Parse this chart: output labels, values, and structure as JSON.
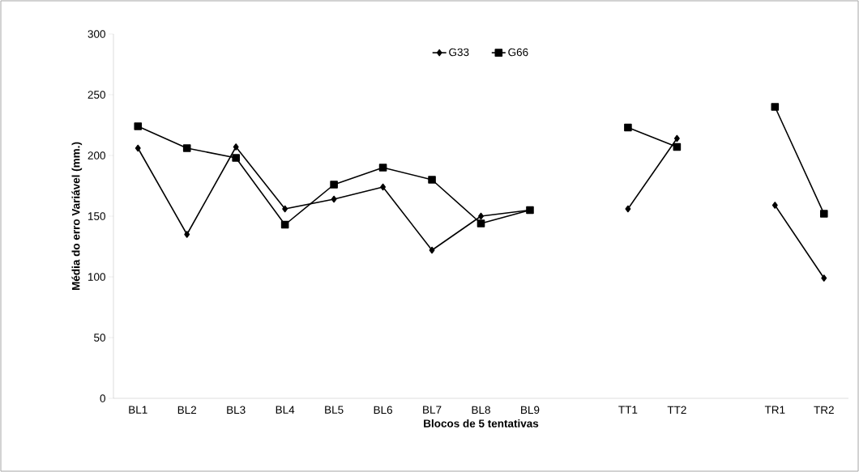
{
  "chart_data": {
    "type": "line",
    "xlabel": "Blocos de 5 tentativas",
    "ylabel": "Média do erro Variável (mm.)",
    "categories": [
      "BL1",
      "BL2",
      "BL3",
      "BL4",
      "BL5",
      "BL6",
      "BL7",
      "BL8",
      "BL9",
      null,
      "TT1",
      "TT2",
      null,
      "TR1",
      "TR2"
    ],
    "series": [
      {
        "name": "G33",
        "color": "#000000",
        "marker": "diamond",
        "values": [
          206,
          135,
          207,
          156,
          164,
          174,
          122,
          150,
          155,
          null,
          156,
          214,
          null,
          159,
          99
        ]
      },
      {
        "name": "G66",
        "color": "#000000",
        "marker": "square",
        "values": [
          224,
          206,
          198,
          143,
          176,
          190,
          180,
          144,
          155,
          null,
          223,
          207,
          null,
          240,
          152
        ]
      }
    ],
    "ylim": [
      0,
      300
    ],
    "yticks": [
      0,
      50,
      100,
      150,
      200,
      250,
      300
    ],
    "grid": false,
    "legend": "top",
    "line_style": "solid"
  }
}
